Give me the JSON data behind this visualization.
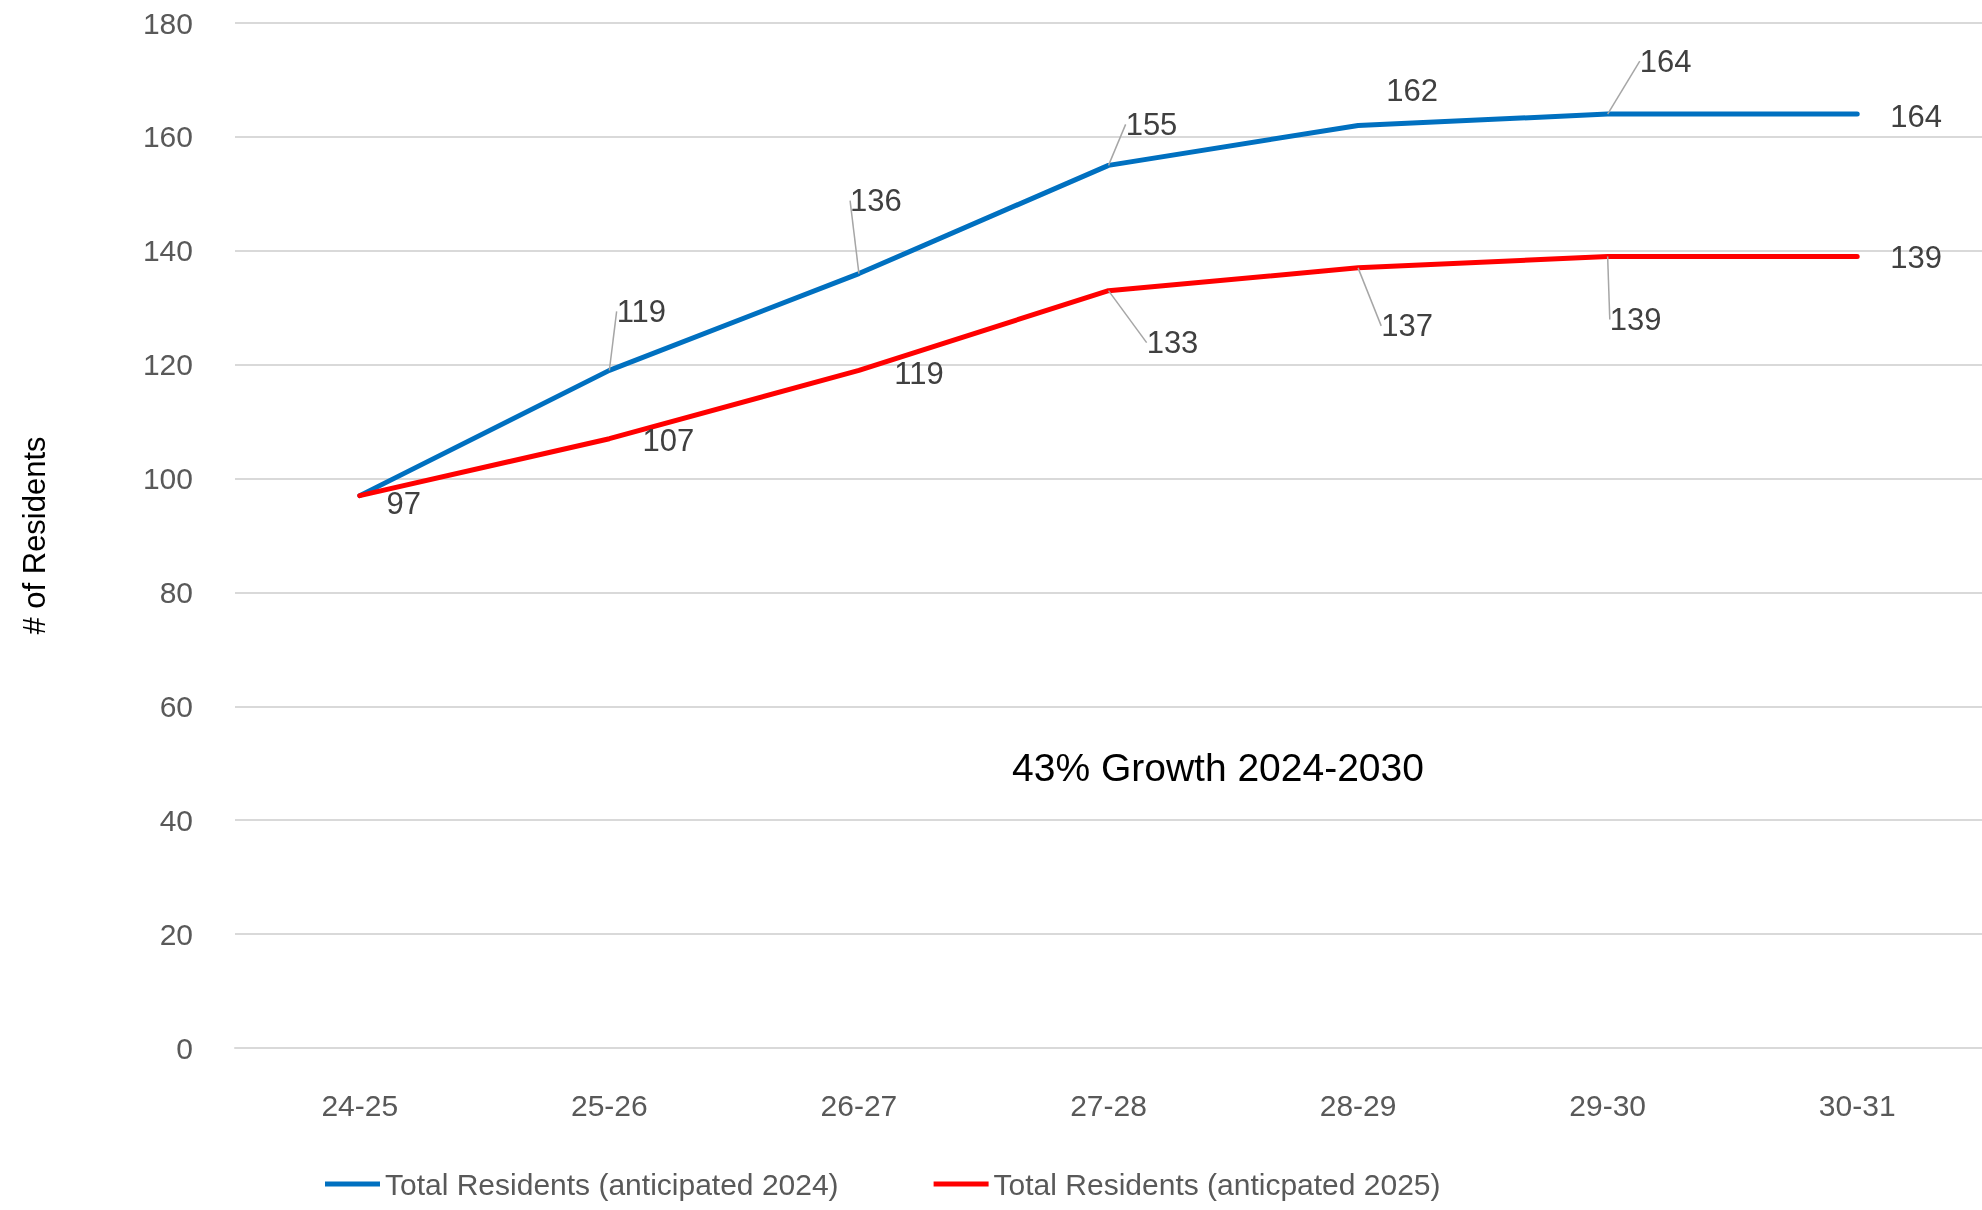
{
  "chart_data": {
    "type": "line",
    "ylabel": "# of Residents",
    "categories": [
      "24-25",
      "25-26",
      "26-27",
      "27-28",
      "28-29",
      "29-30",
      "30-31"
    ],
    "series": [
      {
        "name": "Total Residents (anticipated 2024)",
        "color": "#0070c0",
        "values": [
          97,
          119,
          136,
          155,
          162,
          164,
          164
        ],
        "value_labels": [
          null,
          "119",
          "136",
          "155",
          "162",
          "164",
          "164"
        ]
      },
      {
        "name": "Total Residents (anticpated 2025)",
        "color": "#ff0000",
        "values": [
          97,
          107,
          119,
          133,
          137,
          139,
          139
        ],
        "value_labels": [
          "97",
          "107",
          "119",
          "133",
          "137",
          "139",
          "139"
        ]
      }
    ],
    "ylim": [
      0,
      180
    ],
    "yticks": [
      0,
      20,
      40,
      60,
      80,
      100,
      120,
      140,
      160,
      180
    ],
    "grid": "y",
    "legend": "bottom",
    "marker": "none",
    "line_style": "solid",
    "annotations": [
      "43% Growth 2024-2030"
    ]
  }
}
